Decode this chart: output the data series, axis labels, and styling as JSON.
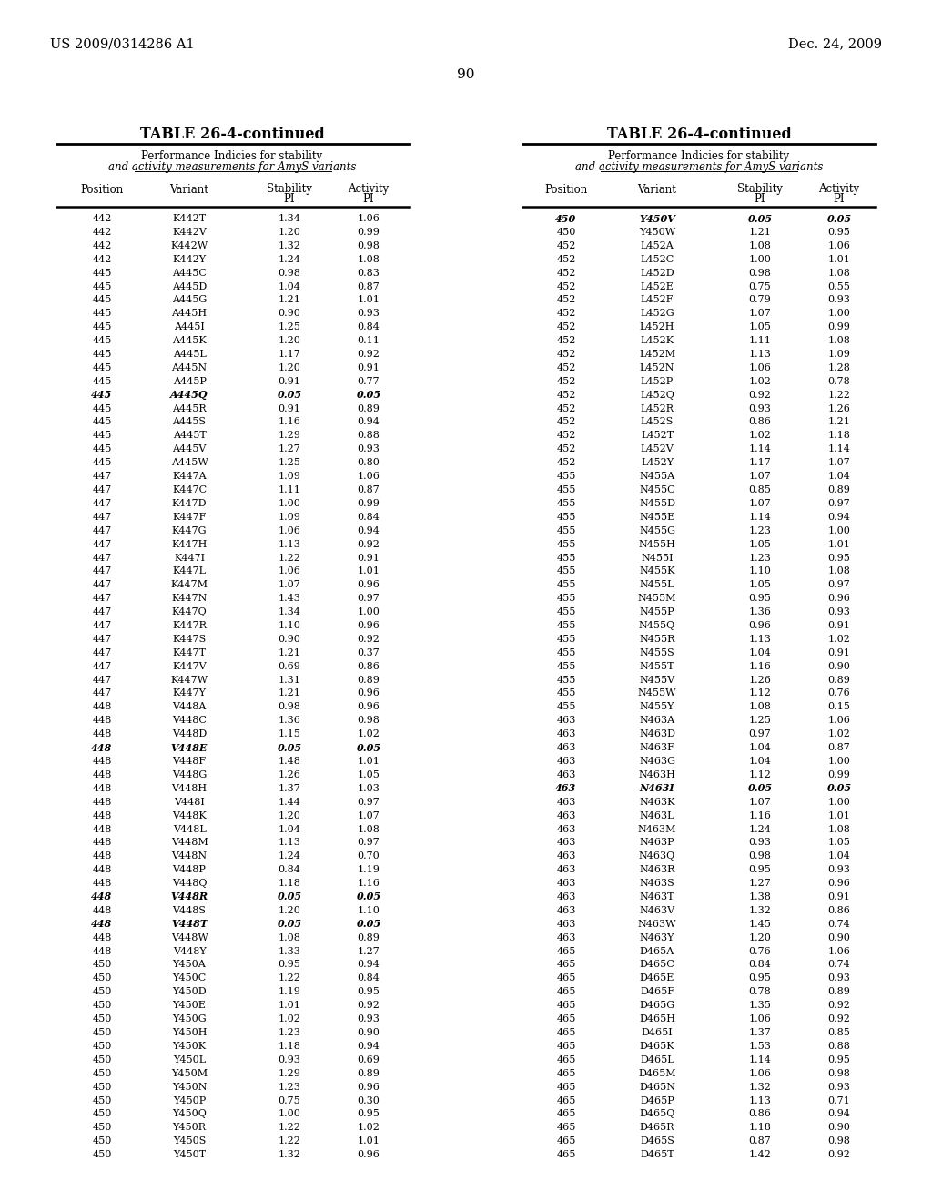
{
  "header_left": "US 2009/0314286 A1",
  "header_right": "Dec. 24, 2009",
  "page_number": "90",
  "table_title": "TABLE 26-4-continued",
  "left_table": [
    [
      "442",
      "K442T",
      "1.34",
      "1.06",
      false
    ],
    [
      "442",
      "K442V",
      "1.20",
      "0.99",
      false
    ],
    [
      "442",
      "K442W",
      "1.32",
      "0.98",
      false
    ],
    [
      "442",
      "K442Y",
      "1.24",
      "1.08",
      false
    ],
    [
      "445",
      "A445C",
      "0.98",
      "0.83",
      false
    ],
    [
      "445",
      "A445D",
      "1.04",
      "0.87",
      false
    ],
    [
      "445",
      "A445G",
      "1.21",
      "1.01",
      false
    ],
    [
      "445",
      "A445H",
      "0.90",
      "0.93",
      false
    ],
    [
      "445",
      "A445I",
      "1.25",
      "0.84",
      false
    ],
    [
      "445",
      "A445K",
      "1.20",
      "0.11",
      false
    ],
    [
      "445",
      "A445L",
      "1.17",
      "0.92",
      false
    ],
    [
      "445",
      "A445N",
      "1.20",
      "0.91",
      false
    ],
    [
      "445",
      "A445P",
      "0.91",
      "0.77",
      false
    ],
    [
      "445",
      "A445Q",
      "0.05",
      "0.05",
      true
    ],
    [
      "445",
      "A445R",
      "0.91",
      "0.89",
      false
    ],
    [
      "445",
      "A445S",
      "1.16",
      "0.94",
      false
    ],
    [
      "445",
      "A445T",
      "1.29",
      "0.88",
      false
    ],
    [
      "445",
      "A445V",
      "1.27",
      "0.93",
      false
    ],
    [
      "445",
      "A445W",
      "1.25",
      "0.80",
      false
    ],
    [
      "447",
      "K447A",
      "1.09",
      "1.06",
      false
    ],
    [
      "447",
      "K447C",
      "1.11",
      "0.87",
      false
    ],
    [
      "447",
      "K447D",
      "1.00",
      "0.99",
      false
    ],
    [
      "447",
      "K447F",
      "1.09",
      "0.84",
      false
    ],
    [
      "447",
      "K447G",
      "1.06",
      "0.94",
      false
    ],
    [
      "447",
      "K447H",
      "1.13",
      "0.92",
      false
    ],
    [
      "447",
      "K447I",
      "1.22",
      "0.91",
      false
    ],
    [
      "447",
      "K447L",
      "1.06",
      "1.01",
      false
    ],
    [
      "447",
      "K447M",
      "1.07",
      "0.96",
      false
    ],
    [
      "447",
      "K447N",
      "1.43",
      "0.97",
      false
    ],
    [
      "447",
      "K447Q",
      "1.34",
      "1.00",
      false
    ],
    [
      "447",
      "K447R",
      "1.10",
      "0.96",
      false
    ],
    [
      "447",
      "K447S",
      "0.90",
      "0.92",
      false
    ],
    [
      "447",
      "K447T",
      "1.21",
      "0.37",
      false
    ],
    [
      "447",
      "K447V",
      "0.69",
      "0.86",
      false
    ],
    [
      "447",
      "K447W",
      "1.31",
      "0.89",
      false
    ],
    [
      "447",
      "K447Y",
      "1.21",
      "0.96",
      false
    ],
    [
      "448",
      "V448A",
      "0.98",
      "0.96",
      false
    ],
    [
      "448",
      "V448C",
      "1.36",
      "0.98",
      false
    ],
    [
      "448",
      "V448D",
      "1.15",
      "1.02",
      false
    ],
    [
      "448",
      "V448E",
      "0.05",
      "0.05",
      true
    ],
    [
      "448",
      "V448F",
      "1.48",
      "1.01",
      false
    ],
    [
      "448",
      "V448G",
      "1.26",
      "1.05",
      false
    ],
    [
      "448",
      "V448H",
      "1.37",
      "1.03",
      false
    ],
    [
      "448",
      "V448I",
      "1.44",
      "0.97",
      false
    ],
    [
      "448",
      "V448K",
      "1.20",
      "1.07",
      false
    ],
    [
      "448",
      "V448L",
      "1.04",
      "1.08",
      false
    ],
    [
      "448",
      "V448M",
      "1.13",
      "0.97",
      false
    ],
    [
      "448",
      "V448N",
      "1.24",
      "0.70",
      false
    ],
    [
      "448",
      "V448P",
      "0.84",
      "1.19",
      false
    ],
    [
      "448",
      "V448Q",
      "1.18",
      "1.16",
      false
    ],
    [
      "448",
      "V448R",
      "0.05",
      "0.05",
      true
    ],
    [
      "448",
      "V448S",
      "1.20",
      "1.10",
      false
    ],
    [
      "448",
      "V448T",
      "0.05",
      "0.05",
      true
    ],
    [
      "448",
      "V448W",
      "1.08",
      "0.89",
      false
    ],
    [
      "448",
      "V448Y",
      "1.33",
      "1.27",
      false
    ],
    [
      "450",
      "Y450A",
      "0.95",
      "0.94",
      false
    ],
    [
      "450",
      "Y450C",
      "1.22",
      "0.84",
      false
    ],
    [
      "450",
      "Y450D",
      "1.19",
      "0.95",
      false
    ],
    [
      "450",
      "Y450E",
      "1.01",
      "0.92",
      false
    ],
    [
      "450",
      "Y450G",
      "1.02",
      "0.93",
      false
    ],
    [
      "450",
      "Y450H",
      "1.23",
      "0.90",
      false
    ],
    [
      "450",
      "Y450K",
      "1.18",
      "0.94",
      false
    ],
    [
      "450",
      "Y450L",
      "0.93",
      "0.69",
      false
    ],
    [
      "450",
      "Y450M",
      "1.29",
      "0.89",
      false
    ],
    [
      "450",
      "Y450N",
      "1.23",
      "0.96",
      false
    ],
    [
      "450",
      "Y450P",
      "0.75",
      "0.30",
      false
    ],
    [
      "450",
      "Y450Q",
      "1.00",
      "0.95",
      false
    ],
    [
      "450",
      "Y450R",
      "1.22",
      "1.02",
      false
    ],
    [
      "450",
      "Y450S",
      "1.22",
      "1.01",
      false
    ],
    [
      "450",
      "Y450T",
      "1.32",
      "0.96",
      false
    ]
  ],
  "right_table": [
    [
      "450",
      "Y450V",
      "0.05",
      "0.05",
      true
    ],
    [
      "450",
      "Y450W",
      "1.21",
      "0.95",
      false
    ],
    [
      "452",
      "L452A",
      "1.08",
      "1.06",
      false
    ],
    [
      "452",
      "L452C",
      "1.00",
      "1.01",
      false
    ],
    [
      "452",
      "L452D",
      "0.98",
      "1.08",
      false
    ],
    [
      "452",
      "L452E",
      "0.75",
      "0.55",
      false
    ],
    [
      "452",
      "L452F",
      "0.79",
      "0.93",
      false
    ],
    [
      "452",
      "L452G",
      "1.07",
      "1.00",
      false
    ],
    [
      "452",
      "L452H",
      "1.05",
      "0.99",
      false
    ],
    [
      "452",
      "L452K",
      "1.11",
      "1.08",
      false
    ],
    [
      "452",
      "L452M",
      "1.13",
      "1.09",
      false
    ],
    [
      "452",
      "L452N",
      "1.06",
      "1.28",
      false
    ],
    [
      "452",
      "L452P",
      "1.02",
      "0.78",
      false
    ],
    [
      "452",
      "L452Q",
      "0.92",
      "1.22",
      false
    ],
    [
      "452",
      "L452R",
      "0.93",
      "1.26",
      false
    ],
    [
      "452",
      "L452S",
      "0.86",
      "1.21",
      false
    ],
    [
      "452",
      "L452T",
      "1.02",
      "1.18",
      false
    ],
    [
      "452",
      "L452V",
      "1.14",
      "1.14",
      false
    ],
    [
      "452",
      "L452Y",
      "1.17",
      "1.07",
      false
    ],
    [
      "455",
      "N455A",
      "1.07",
      "1.04",
      false
    ],
    [
      "455",
      "N455C",
      "0.85",
      "0.89",
      false
    ],
    [
      "455",
      "N455D",
      "1.07",
      "0.97",
      false
    ],
    [
      "455",
      "N455E",
      "1.14",
      "0.94",
      false
    ],
    [
      "455",
      "N455G",
      "1.23",
      "1.00",
      false
    ],
    [
      "455",
      "N455H",
      "1.05",
      "1.01",
      false
    ],
    [
      "455",
      "N455I",
      "1.23",
      "0.95",
      false
    ],
    [
      "455",
      "N455K",
      "1.10",
      "1.08",
      false
    ],
    [
      "455",
      "N455L",
      "1.05",
      "0.97",
      false
    ],
    [
      "455",
      "N455M",
      "0.95",
      "0.96",
      false
    ],
    [
      "455",
      "N455P",
      "1.36",
      "0.93",
      false
    ],
    [
      "455",
      "N455Q",
      "0.96",
      "0.91",
      false
    ],
    [
      "455",
      "N455R",
      "1.13",
      "1.02",
      false
    ],
    [
      "455",
      "N455S",
      "1.04",
      "0.91",
      false
    ],
    [
      "455",
      "N455T",
      "1.16",
      "0.90",
      false
    ],
    [
      "455",
      "N455V",
      "1.26",
      "0.89",
      false
    ],
    [
      "455",
      "N455W",
      "1.12",
      "0.76",
      false
    ],
    [
      "455",
      "N455Y",
      "1.08",
      "0.15",
      false
    ],
    [
      "463",
      "N463A",
      "1.25",
      "1.06",
      false
    ],
    [
      "463",
      "N463D",
      "0.97",
      "1.02",
      false
    ],
    [
      "463",
      "N463F",
      "1.04",
      "0.87",
      false
    ],
    [
      "463",
      "N463G",
      "1.04",
      "1.00",
      false
    ],
    [
      "463",
      "N463H",
      "1.12",
      "0.99",
      false
    ],
    [
      "463",
      "N463I",
      "0.05",
      "0.05",
      true
    ],
    [
      "463",
      "N463K",
      "1.07",
      "1.00",
      false
    ],
    [
      "463",
      "N463L",
      "1.16",
      "1.01",
      false
    ],
    [
      "463",
      "N463M",
      "1.24",
      "1.08",
      false
    ],
    [
      "463",
      "N463P",
      "0.93",
      "1.05",
      false
    ],
    [
      "463",
      "N463Q",
      "0.98",
      "1.04",
      false
    ],
    [
      "463",
      "N463R",
      "0.95",
      "0.93",
      false
    ],
    [
      "463",
      "N463S",
      "1.27",
      "0.96",
      false
    ],
    [
      "463",
      "N463T",
      "1.38",
      "0.91",
      false
    ],
    [
      "463",
      "N463V",
      "1.32",
      "0.86",
      false
    ],
    [
      "463",
      "N463W",
      "1.45",
      "0.74",
      false
    ],
    [
      "463",
      "N463Y",
      "1.20",
      "0.90",
      false
    ],
    [
      "465",
      "D465A",
      "0.76",
      "1.06",
      false
    ],
    [
      "465",
      "D465C",
      "0.84",
      "0.74",
      false
    ],
    [
      "465",
      "D465E",
      "0.95",
      "0.93",
      false
    ],
    [
      "465",
      "D465F",
      "0.78",
      "0.89",
      false
    ],
    [
      "465",
      "D465G",
      "1.35",
      "0.92",
      false
    ],
    [
      "465",
      "D465H",
      "1.06",
      "0.92",
      false
    ],
    [
      "465",
      "D465I",
      "1.37",
      "0.85",
      false
    ],
    [
      "465",
      "D465K",
      "1.53",
      "0.88",
      false
    ],
    [
      "465",
      "D465L",
      "1.14",
      "0.95",
      false
    ],
    [
      "465",
      "D465M",
      "1.06",
      "0.98",
      false
    ],
    [
      "465",
      "D465N",
      "1.32",
      "0.93",
      false
    ],
    [
      "465",
      "D465P",
      "1.13",
      "0.71",
      false
    ],
    [
      "465",
      "D465Q",
      "0.86",
      "0.94",
      false
    ],
    [
      "465",
      "D465R",
      "1.18",
      "0.90",
      false
    ],
    [
      "465",
      "D465S",
      "0.87",
      "0.98",
      false
    ],
    [
      "465",
      "D465T",
      "1.42",
      "0.92",
      false
    ]
  ]
}
